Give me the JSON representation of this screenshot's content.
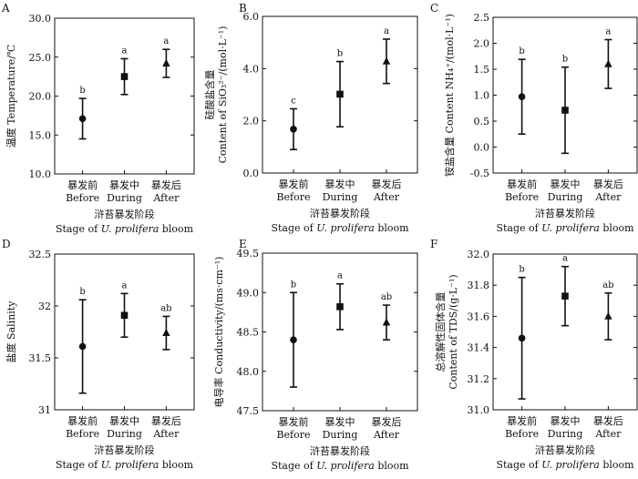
{
  "chart_data": [
    {
      "panel": "A",
      "type": "scatter",
      "categories": [
        "暴发前 Before",
        "暴发中 During",
        "暴发后 After"
      ],
      "category_lines": [
        [
          "暴发前",
          "Before"
        ],
        [
          "暴发中",
          "During"
        ],
        [
          "暴发后",
          "After"
        ]
      ],
      "markers": [
        "circle",
        "square",
        "triangle"
      ],
      "values": [
        17.1,
        22.5,
        24.2
      ],
      "errors": [
        2.6,
        2.3,
        1.8
      ],
      "significance": [
        "b",
        "a",
        "a"
      ],
      "ylabel": "温度 Temperature/℃",
      "ylim": [
        10.0,
        30.0
      ],
      "yticks": [
        "10.0",
        "15.0",
        "20.0",
        "25.0",
        "30.0"
      ],
      "xlabel_cn": "浒苔暴发阶段",
      "xlabel_en_prefix": "Stage of ",
      "xlabel_en_italic": "U. prolifera",
      "xlabel_en_suffix": " bloom"
    },
    {
      "panel": "B",
      "type": "scatter",
      "categories": [
        "暴发前 Before",
        "暴发中 During",
        "暴发后 After"
      ],
      "category_lines": [
        [
          "暴发前",
          "Before"
        ],
        [
          "暴发中",
          "During"
        ],
        [
          "暴发后",
          "After"
        ]
      ],
      "markers": [
        "circle",
        "square",
        "triangle"
      ],
      "values": [
        1.68,
        3.02,
        4.28
      ],
      "errors": [
        0.78,
        1.25,
        0.85
      ],
      "significance": [
        "c",
        "b",
        "a"
      ],
      "ylabel_cn": "硅酸盐含量",
      "ylabel_en": "Content of SiO₃²⁻/(mol·L⁻¹)",
      "ylim": [
        0.0,
        6.0
      ],
      "yticks": [
        "0.0",
        "2.0",
        "4.0",
        "6.0"
      ],
      "xlabel_cn": "浒苔暴发阶段",
      "xlabel_en_prefix": "Stage of ",
      "xlabel_en_italic": "U. prolifera",
      "xlabel_en_suffix": " bloom"
    },
    {
      "panel": "C",
      "type": "scatter",
      "categories": [
        "暴发前 Before",
        "暴发中 During",
        "暴发后 After"
      ],
      "category_lines": [
        [
          "暴发前",
          "Before"
        ],
        [
          "暴发中",
          "During"
        ],
        [
          "暴发后",
          "After"
        ]
      ],
      "markers": [
        "circle",
        "square",
        "triangle"
      ],
      "values": [
        0.97,
        0.71,
        1.6
      ],
      "errors": [
        0.72,
        0.83,
        0.47
      ],
      "significance": [
        "b",
        "b",
        "a"
      ],
      "ylabel": "铵盐含量 Content NH₄⁺/(mol·L⁻¹)",
      "ylim": [
        -0.5,
        2.5
      ],
      "yticks": [
        "-0.5",
        "0.0",
        "0.5",
        "1.0",
        "1.5",
        "2.0",
        "2.5"
      ],
      "xlabel_cn": "浒苔暴发阶段",
      "xlabel_en_prefix": "Stage of ",
      "xlabel_en_italic": "U. prolifera",
      "xlabel_en_suffix": " bloom"
    },
    {
      "panel": "D",
      "type": "scatter",
      "categories": [
        "暴发前 Before",
        "暴发中 During",
        "暴发后 After"
      ],
      "category_lines": [
        [
          "暴发前",
          "Before"
        ],
        [
          "暴发中",
          "During"
        ],
        [
          "暴发后",
          "After"
        ]
      ],
      "markers": [
        "circle",
        "square",
        "triangle"
      ],
      "values": [
        31.61,
        31.91,
        31.74
      ],
      "errors": [
        0.45,
        0.21,
        0.16
      ],
      "significance": [
        "b",
        "a",
        "ab"
      ],
      "ylabel": "盐度 Salinity",
      "ylim": [
        31.0,
        32.5
      ],
      "yticks": [
        "31",
        "31.5",
        "32",
        "32.5"
      ],
      "xlabel_cn": "浒苔暴发阶段",
      "xlabel_en_prefix": "Stage of ",
      "xlabel_en_italic": "U. prolifera",
      "xlabel_en_suffix": " bloom"
    },
    {
      "panel": "E",
      "type": "scatter",
      "categories": [
        "暴发前 Before",
        "暴发中 During",
        "暴发后 After"
      ],
      "category_lines": [
        [
          "暴发前",
          "Before"
        ],
        [
          "暴发中",
          "During"
        ],
        [
          "暴发后",
          "After"
        ]
      ],
      "markers": [
        "circle",
        "square",
        "triangle"
      ],
      "values": [
        48.4,
        48.82,
        48.62
      ],
      "errors": [
        0.6,
        0.29,
        0.22
      ],
      "significance": [
        "b",
        "a",
        "ab"
      ],
      "ylabel": "电导率 Conductivity/(ms·cm⁻¹)",
      "ylim": [
        47.5,
        49.5
      ],
      "yticks": [
        "47.5",
        "48.0",
        "48.5",
        "49.0",
        "49.5"
      ],
      "xlabel_cn": "浒苔暴发阶段",
      "xlabel_en_prefix": "Stage of ",
      "xlabel_en_italic": "U. prolifera",
      "xlabel_en_suffix": " bloom"
    },
    {
      "panel": "F",
      "type": "scatter",
      "categories": [
        "暴发前 Before",
        "暴发中 During",
        "暴发后 After"
      ],
      "category_lines": [
        [
          "暴发前",
          "Before"
        ],
        [
          "暴发中",
          "During"
        ],
        [
          "暴发后",
          "After"
        ]
      ],
      "markers": [
        "circle",
        "square",
        "triangle"
      ],
      "values": [
        31.46,
        31.73,
        31.6
      ],
      "errors": [
        0.39,
        0.19,
        0.15
      ],
      "significance": [
        "b",
        "a",
        "ab"
      ],
      "ylabel_cn": "总溶解性固体含量",
      "ylabel_en": "Content of TDS/(g·L⁻¹)",
      "ylim": [
        31.0,
        32.0
      ],
      "yticks": [
        "31.0",
        "31.2",
        "31.4",
        "31.6",
        "31.8",
        "32.0"
      ],
      "xlabel_cn": "浒苔暴发阶段",
      "xlabel_en_prefix": "Stage of ",
      "xlabel_en_italic": "U. prolifera",
      "xlabel_en_suffix": " bloom"
    }
  ],
  "colors": {
    "ink": "#111111",
    "background": "#ffffff"
  }
}
